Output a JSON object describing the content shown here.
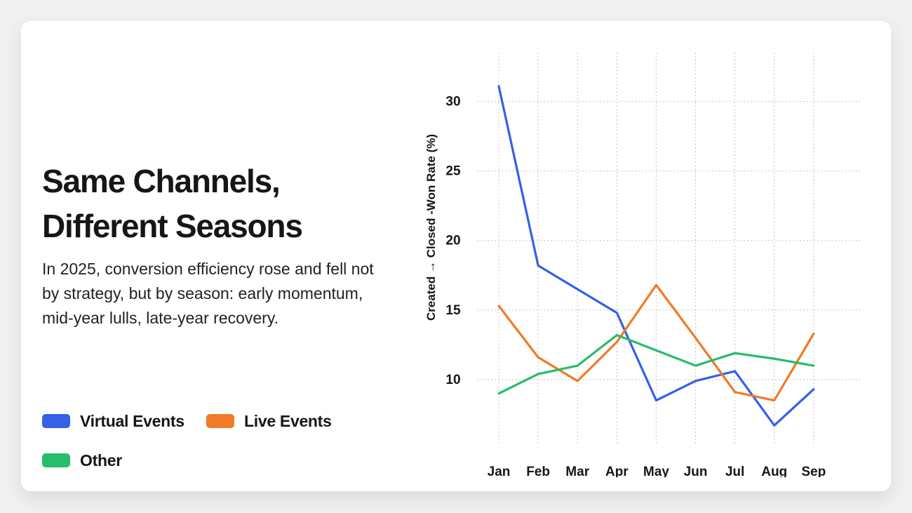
{
  "headline": {
    "line1": "Same Channels,",
    "line2": "Different Seasons"
  },
  "description": "In 2025, conversion efficiency rose and fell not by strategy, but by season: early momentum, mid-year lulls, late-year recovery.",
  "legend": [
    {
      "label": "Virtual Events",
      "color": "#3461e6"
    },
    {
      "label": "Live Events",
      "color": "#f07a26"
    },
    {
      "label": "Other",
      "color": "#27bd6b"
    }
  ],
  "chart_data": {
    "type": "line",
    "title": "Same Channels, Different Seasons",
    "xlabel": "",
    "ylabel": "Created → Closed -Won Rate (%)",
    "categories": [
      "Jan",
      "Feb",
      "Mar",
      "Apr",
      "May",
      "Jun",
      "Jul",
      "Aug",
      "Sep"
    ],
    "ylim": [
      5.5,
      32
    ],
    "yticks": [
      10,
      15,
      20,
      25,
      30
    ],
    "grid": true,
    "series": [
      {
        "name": "Virtual Events",
        "color": "#3461e6",
        "values": [
          31.1,
          18.2,
          16.5,
          14.8,
          8.5,
          9.9,
          10.6,
          6.7,
          9.3
        ]
      },
      {
        "name": "Live Events",
        "color": "#f07a26",
        "values": [
          15.3,
          11.6,
          9.9,
          12.7,
          16.8,
          13.0,
          9.1,
          8.5,
          13.3
        ]
      },
      {
        "name": "Other",
        "color": "#27bd6b",
        "values": [
          9.0,
          10.4,
          11.0,
          13.2,
          12.1,
          11.0,
          11.9,
          11.5,
          11.0
        ]
      }
    ]
  }
}
